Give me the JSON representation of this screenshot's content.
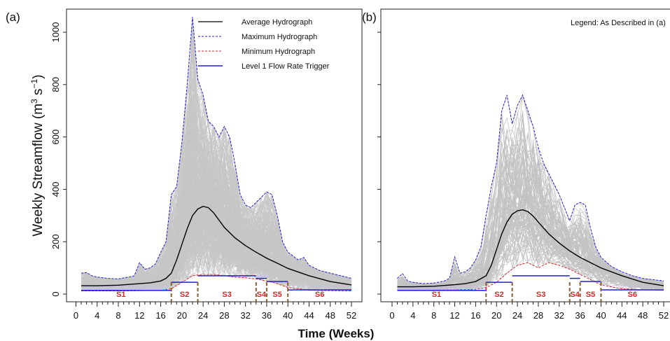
{
  "figure": {
    "xlabel": "Time (Weeks)",
    "ylabel_main": "Weekly Streamflow (m",
    "ylabel_sup1": "3",
    "ylabel_mid": " s",
    "ylabel_sup2": "−1",
    "ylabel_end": ")"
  },
  "legend": {
    "entries": [
      {
        "label": "Average Hydrograph",
        "color": "#000000",
        "dash": "solid"
      },
      {
        "label": "Maximum Hydrograph",
        "color": "#1f1fd6",
        "dash": "dashed"
      },
      {
        "label": "Minimum Hydrograph",
        "color": "#d62728",
        "dash": "dashed"
      },
      {
        "label": "Level 1 Flow Rate Trigger",
        "color": "#1f1fd6",
        "dash": "solid"
      }
    ],
    "note_b": "Legend: As Described in (a)"
  },
  "colors": {
    "ensemble": "#bdbdbd",
    "average": "#000000",
    "maximum": "#1f1fd6",
    "minimum": "#d62728",
    "trigger": "#1f1fd6",
    "season_boundary": "#8b5a2b",
    "season_label": "#d62728"
  },
  "chart_data": [
    {
      "panel": "(a)",
      "type": "line",
      "title": "",
      "xlabel": "Time (Weeks)",
      "ylabel": "Weekly Streamflow (m3 s-1)",
      "xlim": [
        0,
        52
      ],
      "ylim": [
        0,
        1050
      ],
      "xticks": [
        0,
        4,
        8,
        12,
        16,
        20,
        24,
        28,
        32,
        36,
        40,
        44,
        48,
        52
      ],
      "yticks": [
        0,
        200,
        400,
        600,
        800,
        1000
      ],
      "ensemble_members": 350,
      "average": {
        "x": [
          1,
          4,
          8,
          12,
          14,
          16,
          17,
          18,
          19,
          20,
          21,
          22,
          23,
          24,
          25,
          26,
          28,
          30,
          32,
          34,
          36,
          38,
          40,
          44,
          48,
          52
        ],
        "y": [
          32,
          32,
          34,
          40,
          43,
          50,
          60,
          80,
          130,
          190,
          250,
          300,
          325,
          335,
          330,
          310,
          255,
          215,
          185,
          160,
          137,
          118,
          98,
          70,
          48,
          35
        ]
      },
      "maximum": {
        "x": [
          1,
          2,
          3,
          4,
          6,
          8,
          10,
          11,
          12,
          13,
          14,
          15,
          16,
          17,
          18,
          19,
          20,
          21,
          22,
          23,
          24,
          25,
          26,
          27,
          28,
          29,
          30,
          31,
          32,
          33,
          34,
          35,
          36,
          37,
          38,
          39,
          40,
          42,
          43,
          44,
          46,
          48,
          50,
          52
        ],
        "y": [
          80,
          82,
          70,
          65,
          60,
          58,
          65,
          70,
          120,
          95,
          100,
          115,
          160,
          200,
          380,
          410,
          580,
          800,
          1058,
          820,
          760,
          660,
          640,
          600,
          640,
          600,
          500,
          380,
          340,
          330,
          350,
          370,
          390,
          380,
          300,
          200,
          160,
          130,
          140,
          110,
          90,
          80,
          70,
          60
        ]
      },
      "minimum": {
        "x": [
          1,
          4,
          8,
          12,
          16,
          18,
          20,
          22,
          24,
          26,
          28,
          30,
          32,
          34,
          36,
          38,
          40,
          44,
          48,
          52
        ],
        "y": [
          12,
          12,
          12,
          13,
          14,
          20,
          45,
          70,
          75,
          75,
          70,
          65,
          62,
          58,
          50,
          40,
          25,
          15,
          13,
          12
        ]
      },
      "triggers": [
        {
          "x0": 1,
          "x1": 18,
          "y": 14
        },
        {
          "x0": 18,
          "x1": 23,
          "y": 45
        },
        {
          "x0": 23,
          "x1": 34,
          "y": 70
        },
        {
          "x0": 34,
          "x1": 36,
          "y": 60
        },
        {
          "x0": 36,
          "x1": 40,
          "y": 48
        },
        {
          "x0": 40,
          "x1": 52,
          "y": 16
        }
      ],
      "season_boundaries": [
        18,
        23,
        34,
        36,
        40
      ],
      "seasons": [
        {
          "label": "S1",
          "x": 8.5
        },
        {
          "label": "S2",
          "x": 20.5
        },
        {
          "label": "S3",
          "x": 28.5
        },
        {
          "label": "S4",
          "x": 35
        },
        {
          "label": "S5",
          "x": 38
        },
        {
          "label": "S6",
          "x": 46
        }
      ]
    },
    {
      "panel": "(b)",
      "type": "line",
      "title": "",
      "xlabel": "Time (Weeks)",
      "ylabel": "Weekly Streamflow (m3 s-1)",
      "xlim": [
        0,
        52
      ],
      "ylim": [
        0,
        1050
      ],
      "xticks": [
        0,
        4,
        8,
        12,
        16,
        20,
        24,
        28,
        32,
        36,
        40,
        44,
        48,
        52
      ],
      "yticks": [
        0,
        200,
        400,
        600,
        800,
        1000
      ],
      "ensemble_members": 100,
      "average": {
        "x": [
          1,
          4,
          8,
          12,
          14,
          16,
          18,
          19,
          20,
          21,
          22,
          23,
          24,
          25,
          26,
          27,
          28,
          30,
          32,
          34,
          36,
          38,
          40,
          44,
          48,
          52
        ],
        "y": [
          28,
          28,
          30,
          36,
          40,
          48,
          70,
          110,
          170,
          230,
          275,
          305,
          318,
          322,
          315,
          298,
          275,
          230,
          195,
          165,
          140,
          120,
          100,
          70,
          45,
          32
        ]
      },
      "maximum": {
        "x": [
          1,
          2,
          3,
          4,
          6,
          8,
          10,
          11,
          12,
          13,
          14,
          15,
          16,
          17,
          18,
          19,
          20,
          21,
          22,
          23,
          24,
          25,
          26,
          27,
          28,
          29,
          30,
          31,
          32,
          33,
          34,
          35,
          36,
          37,
          38,
          39,
          40,
          42,
          44,
          46,
          48,
          50,
          52
        ],
        "y": [
          60,
          78,
          50,
          45,
          40,
          42,
          50,
          60,
          142,
          80,
          85,
          100,
          130,
          180,
          300,
          410,
          500,
          700,
          760,
          650,
          720,
          760,
          700,
          640,
          560,
          500,
          460,
          420,
          380,
          330,
          280,
          340,
          350,
          340,
          250,
          180,
          140,
          105,
          85,
          70,
          60,
          55,
          50
        ]
      },
      "minimum": {
        "x": [
          1,
          4,
          8,
          12,
          16,
          18,
          20,
          22,
          24,
          26,
          28,
          30,
          32,
          34,
          36,
          38,
          40,
          44,
          48,
          52
        ],
        "y": [
          15,
          15,
          15,
          16,
          18,
          25,
          45,
          80,
          110,
          120,
          100,
          120,
          110,
          95,
          75,
          55,
          35,
          20,
          16,
          15
        ]
      },
      "triggers": [
        {
          "x0": 1,
          "x1": 18,
          "y": 14
        },
        {
          "x0": 18,
          "x1": 23,
          "y": 45
        },
        {
          "x0": 23,
          "x1": 34,
          "y": 70
        },
        {
          "x0": 34,
          "x1": 36,
          "y": 60
        },
        {
          "x0": 36,
          "x1": 40,
          "y": 48
        },
        {
          "x0": 40,
          "x1": 52,
          "y": 16
        }
      ],
      "season_boundaries": [
        18,
        23,
        34,
        36,
        40
      ],
      "seasons": [
        {
          "label": "S1",
          "x": 8.5
        },
        {
          "label": "S2",
          "x": 20.5
        },
        {
          "label": "S3",
          "x": 28.5
        },
        {
          "label": "S4",
          "x": 35
        },
        {
          "label": "S5",
          "x": 38
        },
        {
          "label": "S6",
          "x": 46
        }
      ]
    }
  ]
}
